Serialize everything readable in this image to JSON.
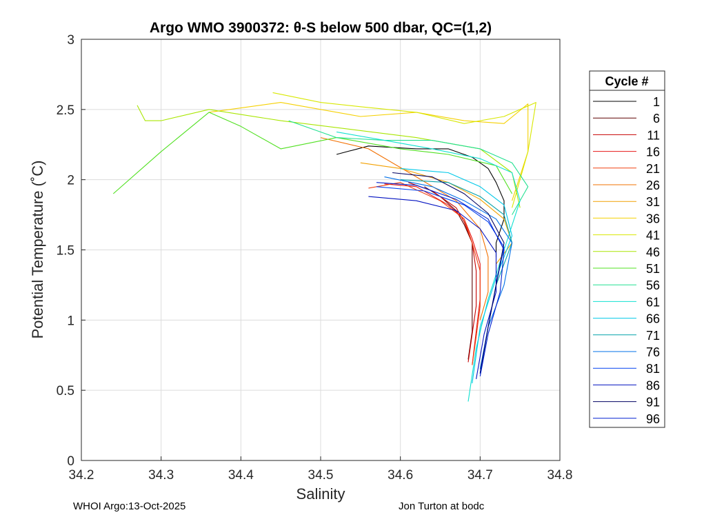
{
  "chart_data": {
    "type": "line",
    "title": "Argo WMO 3900372: θ-S below 500 dbar,  QC=(1,2)",
    "xlabel": "Salinity",
    "ylabel": "Potential Temperature (˚C)",
    "xlim": [
      34.2,
      34.8
    ],
    "ylim": [
      0,
      3
    ],
    "xticks": [
      "34.2",
      "34.3",
      "34.4",
      "34.5",
      "34.6",
      "34.7",
      "34.8"
    ],
    "yticks": [
      "0",
      "0.5",
      "1",
      "1.5",
      "2",
      "2.5",
      "3"
    ],
    "grid": true,
    "legend": {
      "title": "Cycle #",
      "placement": "right-outside",
      "entries": [
        {
          "label": "1",
          "color": "#000000"
        },
        {
          "label": "6",
          "color": "#5e0000"
        },
        {
          "label": "11",
          "color": "#c40000"
        },
        {
          "label": "16",
          "color": "#e61414"
        },
        {
          "label": "21",
          "color": "#f04010"
        },
        {
          "label": "26",
          "color": "#f27000"
        },
        {
          "label": "31",
          "color": "#f2a000"
        },
        {
          "label": "36",
          "color": "#f5d000"
        },
        {
          "label": "41",
          "color": "#d8e800"
        },
        {
          "label": "46",
          "color": "#a8e600"
        },
        {
          "label": "51",
          "color": "#50e020"
        },
        {
          "label": "56",
          "color": "#20e090"
        },
        {
          "label": "61",
          "color": "#10e0d0"
        },
        {
          "label": "66",
          "color": "#00c8e8"
        },
        {
          "label": "71",
          "color": "#00a0a8"
        },
        {
          "label": "76",
          "color": "#0070e8"
        },
        {
          "label": "81",
          "color": "#0040f0"
        },
        {
          "label": "86",
          "color": "#0010c0"
        },
        {
          "label": "91",
          "color": "#000060"
        },
        {
          "label": "96",
          "color": "#0020d0"
        }
      ]
    },
    "series": [
      {
        "name": "1",
        "color": "#000000",
        "x": [
          34.52,
          34.56,
          34.62,
          34.66,
          34.69,
          34.71,
          34.72,
          34.73,
          34.73,
          34.72,
          34.72
        ],
        "y": [
          2.18,
          2.24,
          2.22,
          2.22,
          2.16,
          2.08,
          1.98,
          1.85,
          1.72,
          1.55,
          1.45
        ]
      },
      {
        "name": "6",
        "color": "#5e0000",
        "x": [
          34.63,
          34.65,
          34.67,
          34.68,
          34.69,
          34.69,
          34.69,
          34.69,
          34.685
        ],
        "y": [
          1.95,
          1.88,
          1.78,
          1.68,
          1.55,
          1.35,
          1.15,
          0.92,
          0.72
        ]
      },
      {
        "name": "11",
        "color": "#c40000",
        "x": [
          34.61,
          34.64,
          34.67,
          34.68,
          34.69,
          34.695,
          34.695,
          34.69,
          34.685
        ],
        "y": [
          1.98,
          1.92,
          1.8,
          1.7,
          1.55,
          1.35,
          1.1,
          0.9,
          0.7
        ]
      },
      {
        "name": "16",
        "color": "#e61414",
        "x": [
          34.58,
          34.62,
          34.66,
          34.68,
          34.69,
          34.7,
          34.7,
          34.695,
          34.69
        ],
        "y": [
          1.97,
          1.95,
          1.82,
          1.72,
          1.58,
          1.4,
          1.15,
          0.92,
          0.68
        ]
      },
      {
        "name": "21",
        "color": "#f04010",
        "x": [
          34.56,
          34.6,
          34.65,
          34.68,
          34.69,
          34.7,
          34.7,
          34.695,
          34.69
        ],
        "y": [
          1.94,
          1.98,
          1.85,
          1.72,
          1.55,
          1.35,
          1.1,
          0.88,
          0.68
        ]
      },
      {
        "name": "26",
        "color": "#f27000",
        "x": [
          34.5,
          34.56,
          34.62,
          34.67,
          34.7,
          34.71,
          34.71,
          34.7
        ],
        "y": [
          2.3,
          2.22,
          2.02,
          1.85,
          1.65,
          1.45,
          1.2,
          1.0
        ]
      },
      {
        "name": "31",
        "color": "#f2a000",
        "x": [
          34.55,
          34.6,
          34.66,
          34.7,
          34.73,
          34.74,
          34.72
        ],
        "y": [
          2.12,
          2.08,
          1.98,
          1.86,
          1.72,
          1.55,
          1.4
        ]
      },
      {
        "name": "36",
        "color": "#f5d000",
        "x": [
          34.36,
          34.45,
          34.55,
          34.62,
          34.68,
          34.73,
          34.76,
          34.76,
          34.74
        ],
        "y": [
          2.48,
          2.55,
          2.45,
          2.48,
          2.42,
          2.4,
          2.54,
          2.2,
          1.85
        ]
      },
      {
        "name": "41",
        "color": "#d8e800",
        "x": [
          34.44,
          34.5,
          34.55,
          34.62,
          34.68,
          34.73,
          34.77,
          34.76,
          34.74
        ],
        "y": [
          2.62,
          2.55,
          2.52,
          2.48,
          2.4,
          2.45,
          2.55,
          2.2,
          1.8
        ]
      },
      {
        "name": "46",
        "color": "#a8e600",
        "x": [
          34.27,
          34.28,
          34.3,
          34.36,
          34.45,
          34.55,
          34.62,
          34.7,
          34.74,
          34.75
        ],
        "y": [
          2.53,
          2.42,
          2.42,
          2.5,
          2.42,
          2.35,
          2.3,
          2.22,
          2.05,
          1.8
        ]
      },
      {
        "name": "51",
        "color": "#50e020",
        "x": [
          34.24,
          34.3,
          34.36,
          34.4,
          34.45,
          34.52,
          34.6,
          34.66,
          34.72,
          34.74
        ],
        "y": [
          1.9,
          2.2,
          2.48,
          2.38,
          2.22,
          2.3,
          2.22,
          2.18,
          2.1,
          1.9
        ]
      },
      {
        "name": "56",
        "color": "#20e090",
        "x": [
          34.46,
          34.52,
          34.58,
          34.64,
          34.7,
          34.74,
          34.76,
          34.74
        ],
        "y": [
          2.42,
          2.3,
          2.28,
          2.28,
          2.22,
          2.12,
          1.95,
          1.75
        ]
      },
      {
        "name": "61",
        "color": "#10e0d0",
        "x": [
          34.52,
          34.58,
          34.64,
          34.7,
          34.74,
          34.75,
          34.73,
          34.71,
          34.695,
          34.685
        ],
        "y": [
          2.34,
          2.28,
          2.22,
          2.15,
          2.05,
          1.85,
          1.5,
          1.15,
          0.8,
          0.42
        ]
      },
      {
        "name": "66",
        "color": "#00c8e8",
        "x": [
          34.6,
          34.66,
          34.7,
          34.73,
          34.74,
          34.72,
          34.7,
          34.69
        ],
        "y": [
          2.08,
          2.05,
          1.95,
          1.82,
          1.6,
          1.3,
          0.95,
          0.55
        ]
      },
      {
        "name": "71",
        "color": "#00a0a8",
        "x": [
          34.6,
          34.66,
          34.7,
          34.73,
          34.74,
          34.72,
          34.71,
          34.7
        ],
        "y": [
          2.0,
          1.98,
          1.88,
          1.75,
          1.55,
          1.25,
          0.95,
          0.62
        ]
      },
      {
        "name": "76",
        "color": "#0070e8",
        "x": [
          34.58,
          34.64,
          34.68,
          34.72,
          34.74,
          34.73,
          34.71,
          34.7
        ],
        "y": [
          2.02,
          1.95,
          1.85,
          1.72,
          1.55,
          1.25,
          0.95,
          0.65
        ]
      },
      {
        "name": "81",
        "color": "#0040f0",
        "x": [
          34.57,
          34.63,
          34.68,
          34.71,
          34.73,
          34.72,
          34.71,
          34.7
        ],
        "y": [
          1.95,
          1.92,
          1.82,
          1.7,
          1.52,
          1.25,
          0.95,
          0.62
        ]
      },
      {
        "name": "86",
        "color": "#0010c0",
        "x": [
          34.56,
          34.62,
          34.67,
          34.7,
          34.72,
          34.72,
          34.705,
          34.695
        ],
        "y": [
          1.88,
          1.85,
          1.78,
          1.65,
          1.48,
          1.2,
          0.9,
          0.58
        ]
      },
      {
        "name": "91",
        "color": "#000060",
        "x": [
          34.59,
          34.64,
          34.68,
          34.71,
          34.73,
          34.72,
          34.71,
          34.7
        ],
        "y": [
          2.05,
          2.02,
          1.9,
          1.76,
          1.55,
          1.25,
          0.95,
          0.62
        ]
      },
      {
        "name": "96",
        "color": "#0020d0",
        "x": [
          34.57,
          34.62,
          34.67,
          34.71,
          34.73,
          34.725,
          34.71,
          34.7
        ],
        "y": [
          1.98,
          1.96,
          1.86,
          1.72,
          1.5,
          1.2,
          0.9,
          0.6
        ]
      }
    ]
  },
  "footer": {
    "left": "WHOI Argo:13-Oct-2025",
    "right": "Jon Turton at bodc"
  }
}
